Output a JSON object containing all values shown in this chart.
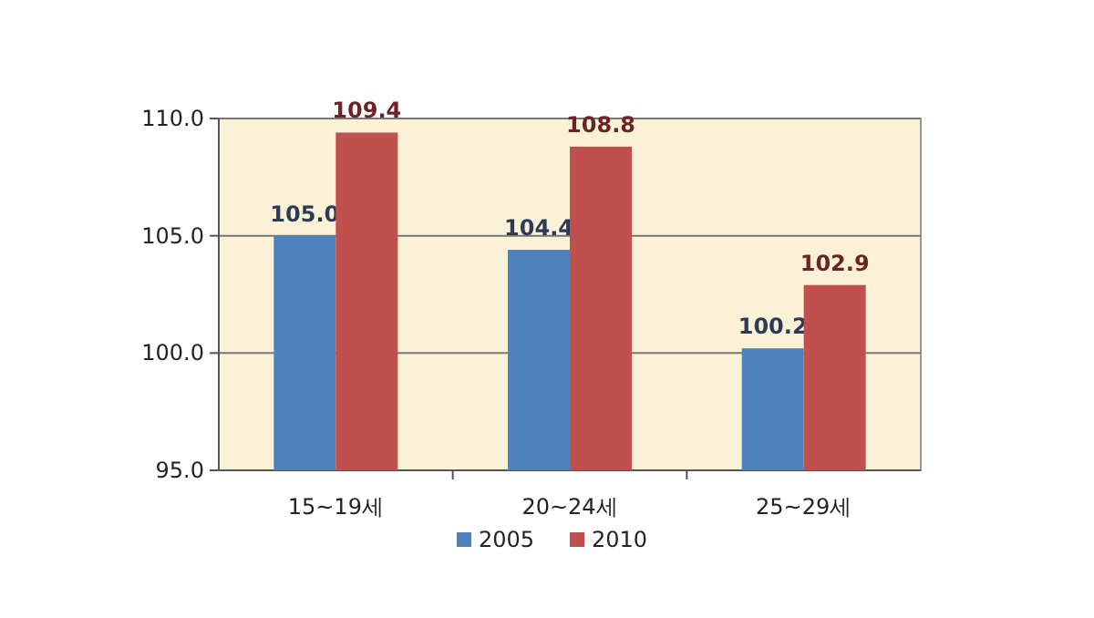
{
  "chart_data": {
    "type": "bar",
    "categories": [
      "15~19세",
      "20~24세",
      "25~29세"
    ],
    "series": [
      {
        "name": "2005",
        "color": "#4f81bd",
        "values": [
          105.0,
          104.4,
          100.2
        ],
        "value_labels": [
          "105.0",
          "104.4",
          "100.2"
        ]
      },
      {
        "name": "2010",
        "color": "#c0504d",
        "values": [
          109.4,
          108.8,
          102.9
        ],
        "value_labels": [
          "109.4",
          "108.8",
          "102.9"
        ]
      }
    ],
    "ylim": [
      95,
      110
    ],
    "yticks": [
      {
        "value": 95,
        "label": "95.0"
      },
      {
        "value": 100,
        "label": "100.0"
      },
      {
        "value": 105,
        "label": "105.0"
      },
      {
        "value": 110,
        "label": "110.0"
      }
    ],
    "grid": "y",
    "legend": "bottom"
  }
}
